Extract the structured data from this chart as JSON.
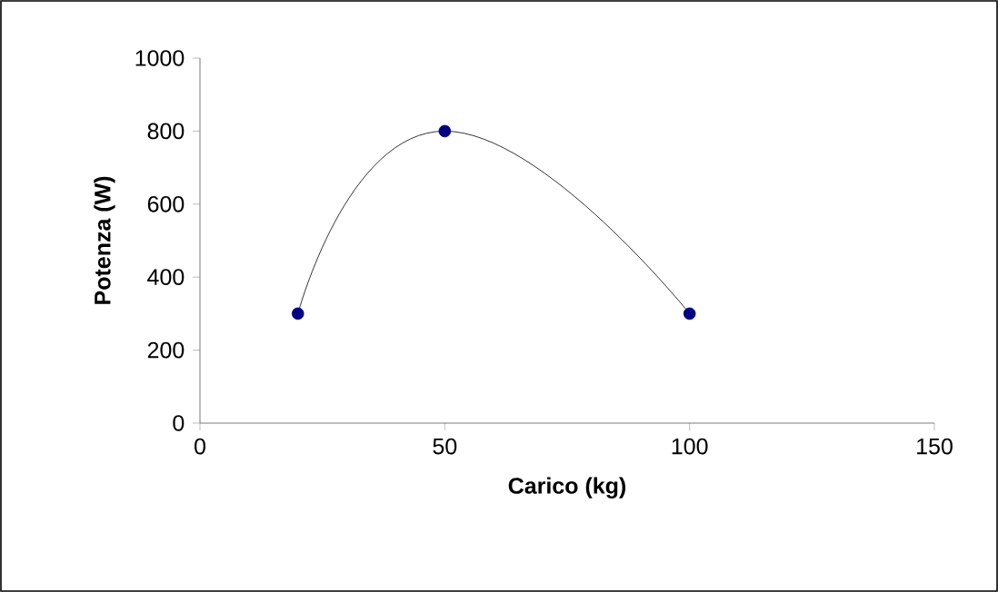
{
  "chart_data": {
    "type": "scatter",
    "xlabel": "Carico (kg)",
    "ylabel": "Potenza (W)",
    "xlim": [
      0,
      150
    ],
    "xticks": [
      0,
      50,
      100,
      150
    ],
    "ylim": [
      0,
      1000
    ],
    "yticks": [
      0,
      200,
      400,
      600,
      800,
      1000
    ],
    "series": [
      {
        "type": "line",
        "color": "#000000",
        "marker": "none",
        "x": [
          20,
          50,
          100
        ],
        "values": [
          300,
          800,
          300
        ]
      },
      {
        "type": "scatter",
        "color": "#000080",
        "marker": "circle",
        "x": [
          20,
          50,
          100
        ],
        "values": [
          300,
          800,
          300
        ]
      }
    ]
  }
}
